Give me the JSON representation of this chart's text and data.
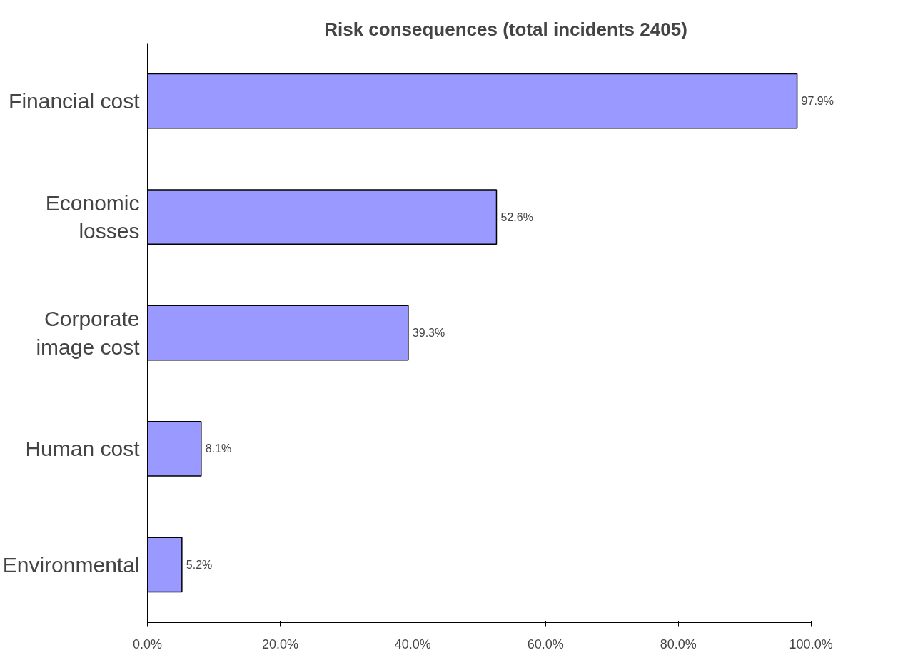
{
  "chart_data": {
    "type": "bar",
    "orientation": "horizontal",
    "title": "Risk consequences (total incidents 2405)",
    "categories": [
      "Financial cost",
      "Economic losses",
      "Corporate image cost",
      "Human cost",
      "Environmental"
    ],
    "values": [
      97.9,
      52.6,
      39.3,
      8.1,
      5.2
    ],
    "value_labels": [
      "97.9%",
      "52.6%",
      "39.3%",
      "8.1%",
      "5.2%"
    ],
    "color": "#9999ff",
    "xlim": [
      0,
      100
    ],
    "xticks": [
      {
        "value": 0,
        "label": "0.0%"
      },
      {
        "value": 20,
        "label": "20.0%"
      },
      {
        "value": 40,
        "label": "40.0%"
      },
      {
        "value": 60,
        "label": "60.0%"
      },
      {
        "value": 80,
        "label": "80.0%"
      },
      {
        "value": 100,
        "label": "100.0%"
      }
    ],
    "grid": false
  }
}
